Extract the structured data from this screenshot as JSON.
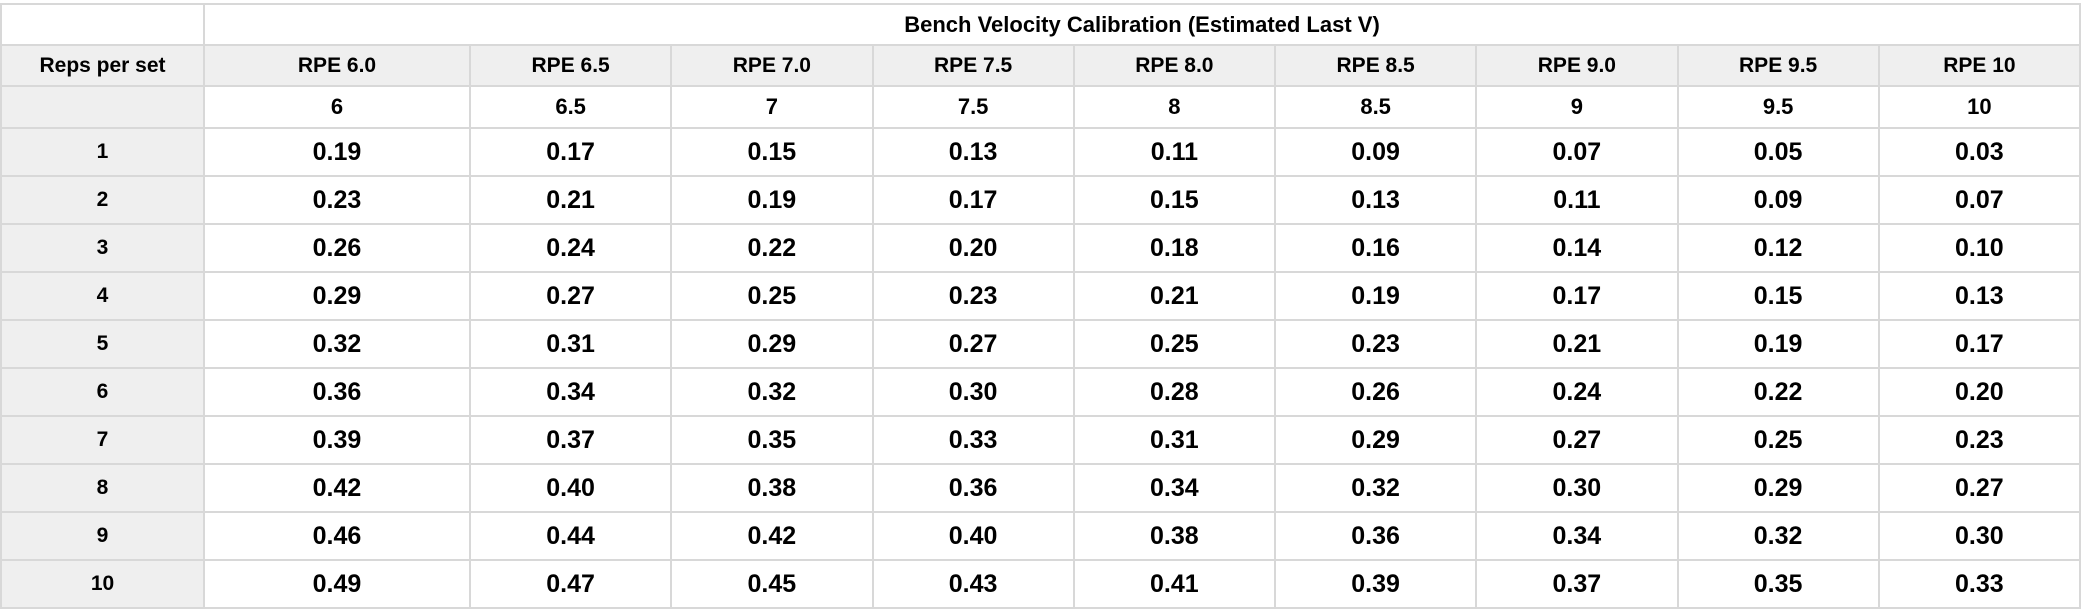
{
  "colors": {
    "title_bg": "#d9d9d9",
    "header_bg": "#efefef",
    "cell_bg": "#ffffff",
    "grid": "#d8d8d8",
    "text": "#000000"
  },
  "chart_data": {
    "type": "table",
    "title": "Bench Velocity Calibration (Estimated Last V)",
    "row_axis_label": "Reps per set",
    "columns": [
      "RPE 6.0",
      "RPE 6.5",
      "RPE 7.0",
      "RPE 7.5",
      "RPE 8.0",
      "RPE 8.5",
      "RPE 9.0",
      "RPE 9.5",
      "RPE 10"
    ],
    "rpe_values": [
      "6",
      "6.5",
      "7",
      "7.5",
      "8",
      "8.5",
      "9",
      "9.5",
      "10"
    ],
    "reps": [
      "1",
      "2",
      "3",
      "4",
      "5",
      "6",
      "7",
      "8",
      "9",
      "10"
    ],
    "rows": [
      [
        "0.19",
        "0.17",
        "0.15",
        "0.13",
        "0.11",
        "0.09",
        "0.07",
        "0.05",
        "0.03"
      ],
      [
        "0.23",
        "0.21",
        "0.19",
        "0.17",
        "0.15",
        "0.13",
        "0.11",
        "0.09",
        "0.07"
      ],
      [
        "0.26",
        "0.24",
        "0.22",
        "0.20",
        "0.18",
        "0.16",
        "0.14",
        "0.12",
        "0.10"
      ],
      [
        "0.29",
        "0.27",
        "0.25",
        "0.23",
        "0.21",
        "0.19",
        "0.17",
        "0.15",
        "0.13"
      ],
      [
        "0.32",
        "0.31",
        "0.29",
        "0.27",
        "0.25",
        "0.23",
        "0.21",
        "0.19",
        "0.17"
      ],
      [
        "0.36",
        "0.34",
        "0.32",
        "0.30",
        "0.28",
        "0.26",
        "0.24",
        "0.22",
        "0.20"
      ],
      [
        "0.39",
        "0.37",
        "0.35",
        "0.33",
        "0.31",
        "0.29",
        "0.27",
        "0.25",
        "0.23"
      ],
      [
        "0.42",
        "0.40",
        "0.38",
        "0.36",
        "0.34",
        "0.32",
        "0.30",
        "0.29",
        "0.27"
      ],
      [
        "0.46",
        "0.44",
        "0.42",
        "0.40",
        "0.38",
        "0.36",
        "0.34",
        "0.32",
        "0.30"
      ],
      [
        "0.49",
        "0.47",
        "0.45",
        "0.43",
        "0.41",
        "0.39",
        "0.37",
        "0.35",
        "0.33"
      ]
    ]
  }
}
